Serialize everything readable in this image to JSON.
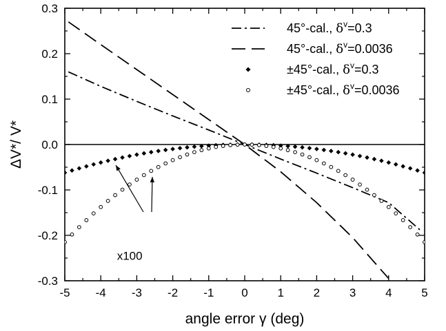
{
  "chart_data": {
    "type": "line",
    "xlabel": "angle error γ (deg)",
    "ylabel": "ΔV*/ V*",
    "xlim": [
      -5,
      5
    ],
    "ylim": [
      -0.3,
      0.3
    ],
    "x_ticks": [
      -5,
      -4,
      -3,
      -2,
      -1,
      0,
      1,
      2,
      3,
      4,
      5
    ],
    "y_ticks": [
      0.3,
      0.2,
      0.1,
      0.0,
      -0.1,
      -0.2,
      -0.3
    ],
    "y_tick_labels": [
      "0.3",
      "0.2",
      "0.1",
      "0.0",
      "-0.1",
      "-0.2",
      "-0.3"
    ],
    "grid": false,
    "legend_position": "top-right",
    "zero_line": true,
    "series": [
      {
        "name": "45°-cal., δ",
        "superscript": "v",
        "param": "=0.3",
        "style": "dash-dot",
        "x": [
          -4.9,
          -4,
          -3,
          -2,
          -1,
          0,
          1,
          2,
          3,
          4,
          4.9
        ],
        "y": [
          0.16,
          0.128,
          0.095,
          0.063,
          0.032,
          0.0,
          -0.032,
          -0.063,
          -0.095,
          -0.128,
          -0.19
        ]
      },
      {
        "name": "45°-cal., δ",
        "superscript": "v",
        "param": "=0.0036",
        "style": "dash",
        "x": [
          -4.9,
          -4,
          -3,
          -2,
          -1,
          0,
          1,
          2,
          3,
          4
        ],
        "y": [
          0.27,
          0.22,
          0.165,
          0.11,
          0.055,
          0.0,
          -0.06,
          -0.128,
          -0.205,
          -0.295
        ]
      },
      {
        "name": "±45°-cal., δ",
        "superscript": "v",
        "param": "=0.3",
        "style": "filled-diamond",
        "x_start": -5,
        "x_end": 5,
        "step": 0.2,
        "peak_at_edge": -0.062
      },
      {
        "name": "±45°-cal., δ",
        "superscript": "v",
        "param": "=0.0036",
        "style": "open-circle",
        "x_start": -5,
        "x_end": 5,
        "step": 0.2,
        "peak_at_edge": -0.215
      }
    ],
    "annotations": [
      {
        "text": "x100",
        "x": -3.55,
        "y": -0.178
      }
    ]
  }
}
